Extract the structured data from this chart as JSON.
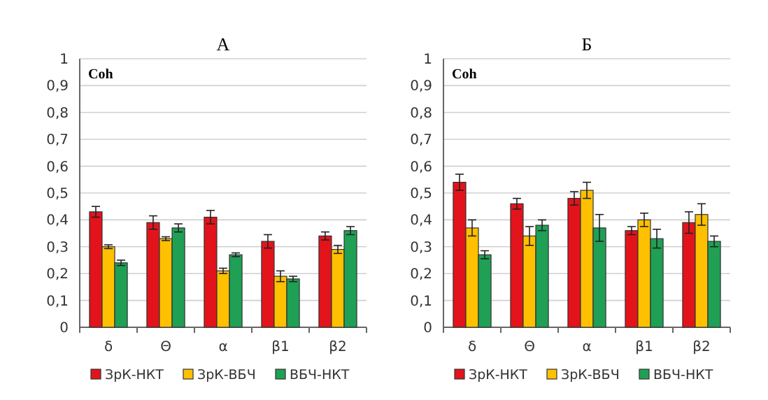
{
  "chart_data": [
    {
      "type": "bar",
      "title": "А",
      "annotations": [
        "Coh"
      ],
      "categories": [
        "δ",
        "Θ",
        "α",
        "β1",
        "β2"
      ],
      "series": [
        {
          "name": "ЗрК-НКТ",
          "color": "#e3131b",
          "values": [
            0.43,
            0.39,
            0.41,
            0.32,
            0.34
          ],
          "errors": [
            0.02,
            0.025,
            0.025,
            0.025,
            0.015
          ]
        },
        {
          "name": "ЗрК-ВБЧ",
          "color": "#ffc000",
          "values": [
            0.3,
            0.33,
            0.21,
            0.19,
            0.29
          ],
          "errors": [
            0.007,
            0.007,
            0.01,
            0.02,
            0.015
          ]
        },
        {
          "name": "ВБЧ-НКТ",
          "color": "#1fa055",
          "values": [
            0.24,
            0.37,
            0.27,
            0.18,
            0.36
          ],
          "errors": [
            0.01,
            0.015,
            0.007,
            0.01,
            0.015
          ]
        }
      ],
      "ylim": [
        0,
        1
      ],
      "yticks": [
        {
          "value": 0,
          "label": "0"
        },
        {
          "value": 0.1,
          "label": "0,1"
        },
        {
          "value": 0.2,
          "label": "0,2"
        },
        {
          "value": 0.3,
          "label": "0,3"
        },
        {
          "value": 0.4,
          "label": "0,4"
        },
        {
          "value": 0.5,
          "label": "0,5"
        },
        {
          "value": 0.6,
          "label": "0,6"
        },
        {
          "value": 0.7,
          "label": "0,7"
        },
        {
          "value": 0.8,
          "label": "0,8"
        },
        {
          "value": 0.9,
          "label": "0,9"
        },
        {
          "value": 1,
          "label": "1"
        }
      ],
      "grid": "y",
      "legend": "bottom"
    },
    {
      "type": "bar",
      "title": "Б",
      "annotations": [
        "Coh"
      ],
      "categories": [
        "δ",
        "Θ",
        "α",
        "β1",
        "β2"
      ],
      "series": [
        {
          "name": "ЗрК-НКТ",
          "color": "#e3131b",
          "values": [
            0.54,
            0.46,
            0.48,
            0.36,
            0.39
          ],
          "errors": [
            0.03,
            0.02,
            0.025,
            0.015,
            0.04
          ]
        },
        {
          "name": "ЗрК-ВБЧ",
          "color": "#ffc000",
          "values": [
            0.37,
            0.34,
            0.51,
            0.4,
            0.42
          ],
          "errors": [
            0.03,
            0.035,
            0.03,
            0.025,
            0.04
          ]
        },
        {
          "name": "ВБЧ-НКТ",
          "color": "#1fa055",
          "values": [
            0.27,
            0.38,
            0.37,
            0.33,
            0.32
          ],
          "errors": [
            0.015,
            0.02,
            0.05,
            0.035,
            0.02
          ]
        }
      ],
      "ylim": [
        0,
        1
      ],
      "yticks": [
        {
          "value": 0,
          "label": "0"
        },
        {
          "value": 0.1,
          "label": "0,1"
        },
        {
          "value": 0.2,
          "label": "0,2"
        },
        {
          "value": 0.3,
          "label": "0,3"
        },
        {
          "value": 0.4,
          "label": "0,4"
        },
        {
          "value": 0.5,
          "label": "0,5"
        },
        {
          "value": 0.6,
          "label": "0,6"
        },
        {
          "value": 0.7,
          "label": "0,7"
        },
        {
          "value": 0.8,
          "label": "0,8"
        },
        {
          "value": 0.9,
          "label": "0,9"
        },
        {
          "value": 1,
          "label": "1"
        }
      ],
      "grid": "y",
      "legend": "bottom"
    }
  ]
}
